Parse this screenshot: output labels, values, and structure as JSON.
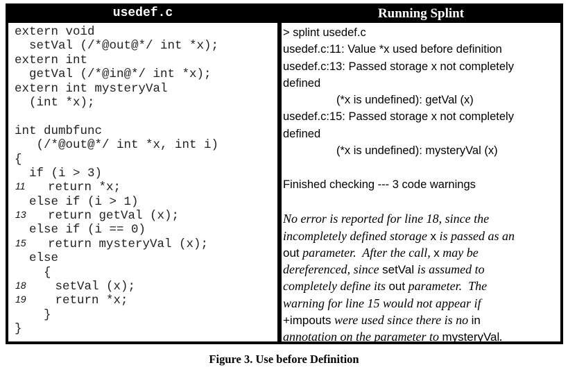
{
  "left_header": "usedef.c",
  "right_header": "Running Splint",
  "code_lines": [
    {
      "num": "",
      "text": "extern void"
    },
    {
      "num": "",
      "text": "  setVal (/*@out@*/ int *x);"
    },
    {
      "num": "",
      "text": "extern int"
    },
    {
      "num": "",
      "text": "  getVal (/*@in@*/ int *x);"
    },
    {
      "num": "",
      "text": "extern int mysteryVal"
    },
    {
      "num": "",
      "text": "  (int *x);"
    },
    {
      "num": "",
      "text": ""
    },
    {
      "num": "",
      "text": "int dumbfunc"
    },
    {
      "num": "",
      "text": "   (/*@out@*/ int *x, int i)"
    },
    {
      "num": "",
      "text": "{"
    },
    {
      "num": "",
      "text": "  if (i > 3)"
    },
    {
      "num": "11",
      "text": "    return *x;"
    },
    {
      "num": "",
      "text": "  else if (i > 1)"
    },
    {
      "num": "13",
      "text": "    return getVal (x);"
    },
    {
      "num": "",
      "text": "  else if (i == 0)"
    },
    {
      "num": "15",
      "text": "    return mysteryVal (x);"
    },
    {
      "num": "",
      "text": "  else"
    },
    {
      "num": "",
      "text": "    {"
    },
    {
      "num": "18",
      "text": "     setVal (x);"
    },
    {
      "num": "19",
      "text": "     return *x;"
    },
    {
      "num": "",
      "text": "    }"
    },
    {
      "num": "",
      "text": "}"
    }
  ],
  "output_lines": [
    {
      "indent": false,
      "text": "> splint usedef.c"
    },
    {
      "indent": false,
      "text": "usedef.c:11: Value *x used before definition"
    },
    {
      "indent": false,
      "text": "usedef.c:13: Passed storage x not completely"
    },
    {
      "indent": false,
      "text": "defined"
    },
    {
      "indent": true,
      "text": "(*x is undefined): getVal (x)"
    },
    {
      "indent": false,
      "text": "usedef.c:15: Passed storage x not completely"
    },
    {
      "indent": false,
      "text": "defined"
    },
    {
      "indent": true,
      "text": "(*x is undefined): mysteryVal (x)"
    },
    {
      "indent": false,
      "text": ""
    },
    {
      "indent": false,
      "text": "Finished checking --- 3 code warnings"
    },
    {
      "indent": false,
      "text": ""
    }
  ],
  "note_lines": [
    [
      {
        "s": "it",
        "t": "No error is reported for line 18, since the"
      }
    ],
    [
      {
        "s": "it",
        "t": "incompletely defined storage "
      },
      {
        "s": "sn",
        "t": "x"
      },
      {
        "s": "it",
        "t": " is passed as an"
      }
    ],
    [
      {
        "s": "sn",
        "t": "out"
      },
      {
        "s": "it",
        "t": " parameter.  After the call, "
      },
      {
        "s": "sn",
        "t": "x"
      },
      {
        "s": "it",
        "t": " may be"
      }
    ],
    [
      {
        "s": "it",
        "t": "dereferenced, since "
      },
      {
        "s": "sn",
        "t": "setVal"
      },
      {
        "s": "it",
        "t": " is assumed to"
      }
    ],
    [
      {
        "s": "it",
        "t": "completely define its "
      },
      {
        "s": "sn",
        "t": "out"
      },
      {
        "s": "it",
        "t": " parameter.  The"
      }
    ],
    [
      {
        "s": "it",
        "t": "warning for line 15 would not appear if"
      }
    ],
    [
      {
        "s": "sn",
        "t": "+impouts"
      },
      {
        "s": "it",
        "t": " were used since there is no "
      },
      {
        "s": "sn",
        "t": "in"
      }
    ],
    [
      {
        "s": "it",
        "t": "annotation on the parameter to "
      },
      {
        "s": "sn",
        "t": "mysteryVal"
      },
      {
        "s": "it",
        "t": "."
      }
    ]
  ],
  "caption": "Figure 3.  Use before Definition"
}
